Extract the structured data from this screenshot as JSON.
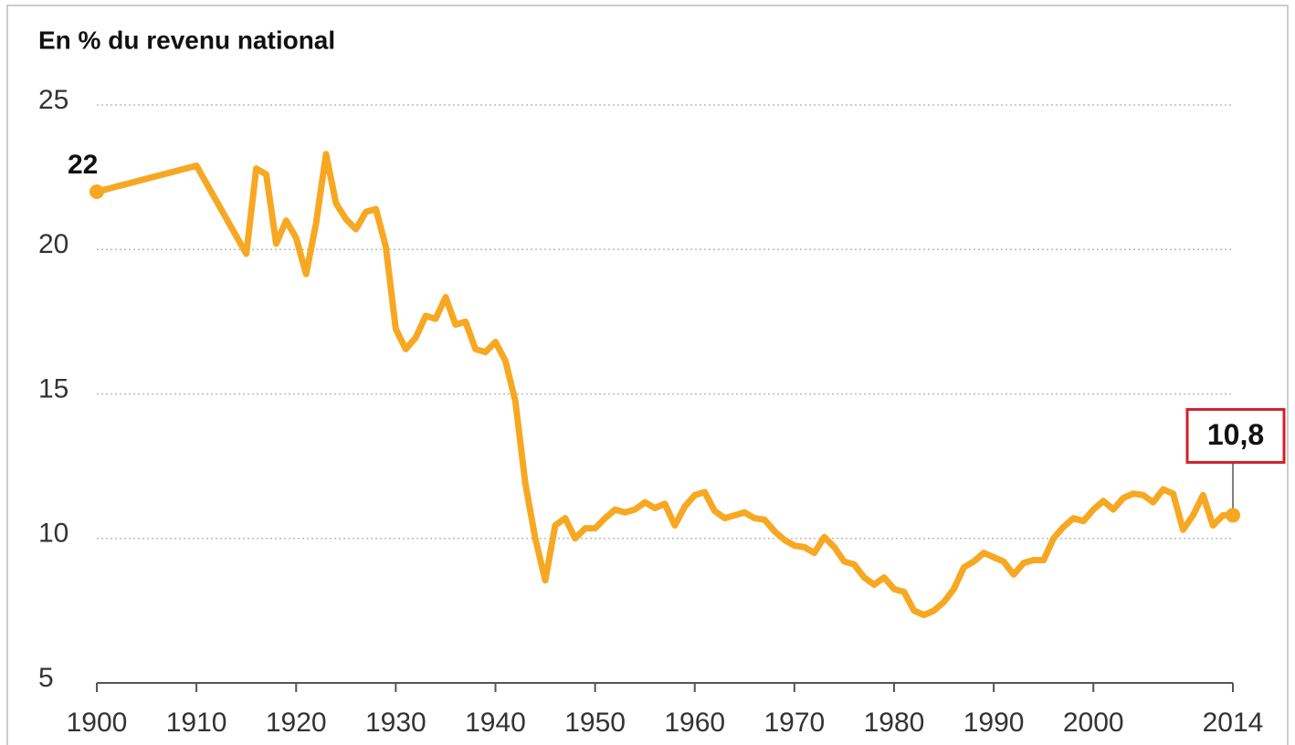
{
  "chart_data": {
    "type": "line",
    "ylabel": "En % du revenu national",
    "x": [
      1900,
      1910,
      1915,
      1916,
      1917,
      1918,
      1919,
      1920,
      1921,
      1922,
      1923,
      1924,
      1925,
      1926,
      1927,
      1928,
      1929,
      1930,
      1931,
      1932,
      1933,
      1934,
      1935,
      1936,
      1937,
      1938,
      1939,
      1940,
      1941,
      1942,
      1943,
      1944,
      1945,
      1946,
      1947,
      1948,
      1949,
      1950,
      1951,
      1952,
      1953,
      1954,
      1955,
      1956,
      1957,
      1958,
      1959,
      1960,
      1961,
      1962,
      1963,
      1964,
      1965,
      1966,
      1967,
      1968,
      1969,
      1970,
      1971,
      1972,
      1973,
      1974,
      1975,
      1976,
      1977,
      1978,
      1979,
      1980,
      1981,
      1982,
      1983,
      1984,
      1985,
      1986,
      1987,
      1988,
      1989,
      1990,
      1991,
      1992,
      1993,
      1994,
      1995,
      1996,
      1997,
      1998,
      1999,
      2000,
      2001,
      2002,
      2003,
      2004,
      2005,
      2006,
      2007,
      2008,
      2009,
      2010,
      2011,
      2012,
      2013,
      2014
    ],
    "series": [
      {
        "color": "#f7a823",
        "values": [
          22,
          22.9,
          19.85,
          22.8,
          22.6,
          20.2,
          21.0,
          20.4,
          19.15,
          20.9,
          23.3,
          21.6,
          21.05,
          20.7,
          21.3,
          21.4,
          20.1,
          17.25,
          16.55,
          16.95,
          17.7,
          17.6,
          18.35,
          17.4,
          17.5,
          16.55,
          16.45,
          16.8,
          16.15,
          14.75,
          11.9,
          10.0,
          8.55,
          10.45,
          10.7,
          10.0,
          10.35,
          10.35,
          10.7,
          11.0,
          10.9,
          11.0,
          11.25,
          11.05,
          11.2,
          10.45,
          11.1,
          11.5,
          11.6,
          10.95,
          10.7,
          10.8,
          10.9,
          10.7,
          10.65,
          10.25,
          9.95,
          9.75,
          9.7,
          9.5,
          10.05,
          9.7,
          9.2,
          9.1,
          8.65,
          8.4,
          8.65,
          8.25,
          8.15,
          7.5,
          7.35,
          7.5,
          7.8,
          8.25,
          9.0,
          9.2,
          9.5,
          9.35,
          9.2,
          8.75,
          9.15,
          9.25,
          9.25,
          10.0,
          10.4,
          10.7,
          10.6,
          11.0,
          11.3,
          11.0,
          11.4,
          11.55,
          11.5,
          11.25,
          11.7,
          11.55,
          10.3,
          10.8,
          11.5,
          10.45,
          10.8,
          10.8
        ],
        "value_labels": [
          "22",
          null,
          null,
          null,
          null,
          null,
          null,
          null,
          null,
          null,
          null,
          null,
          null,
          null,
          null,
          null,
          null,
          null,
          null,
          null,
          null,
          null,
          null,
          null,
          null,
          null,
          null,
          null,
          null,
          null,
          null,
          null,
          null,
          null,
          null,
          null,
          null,
          null,
          null,
          null,
          null,
          null,
          null,
          null,
          null,
          null,
          null,
          null,
          null,
          null,
          null,
          null,
          null,
          null,
          null,
          null,
          null,
          null,
          null,
          null,
          null,
          null,
          null,
          null,
          null,
          null,
          null,
          null,
          null,
          null,
          null,
          null,
          null,
          null,
          null,
          null,
          null,
          null,
          null,
          null,
          null,
          null,
          null,
          null,
          null,
          null,
          null,
          null,
          null,
          null,
          null,
          null,
          null,
          null,
          null,
          null,
          null,
          null,
          null,
          null,
          null,
          "10,8"
        ]
      }
    ],
    "xlim": [
      1900,
      2014
    ],
    "xticks": [
      1900,
      1910,
      1920,
      1930,
      1940,
      1950,
      1960,
      1970,
      1980,
      1990,
      2000,
      2014
    ],
    "ylim": [
      5,
      25
    ],
    "yticks": [
      5,
      10,
      15,
      20,
      25
    ],
    "grid": true
  }
}
